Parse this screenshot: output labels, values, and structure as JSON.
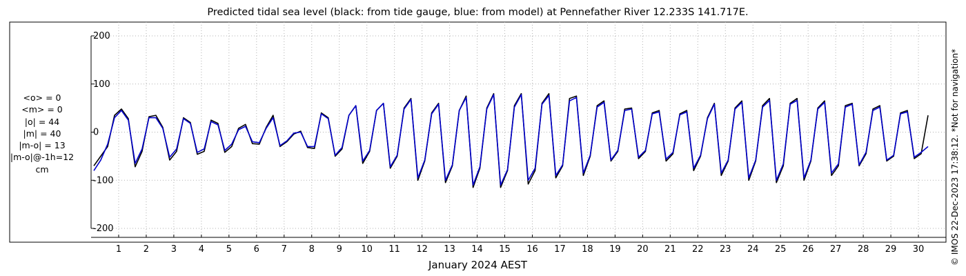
{
  "title": "Predicted tidal sea level (black: from tide gauge, blue: from model) at Pennefather River 12.233S 141.717E.",
  "xlabel": "January 2024 AEST",
  "stats": [
    "<o> = 0",
    "<m> = 0",
    "|o| = 44",
    "|m| = 40",
    "|m-o| = 13",
    "|m-o|@-1h=12",
    "cm"
  ],
  "credit": "© IMOS 22-Dec-2023 17:38:12. *Not for navigation*",
  "colors": {
    "observed": "#000000",
    "model": "#0000cc",
    "grid": "#b0b0b0"
  },
  "chart_data": {
    "type": "line",
    "title": "Predicted tidal sea level (black: from tide gauge, blue: from model) at Pennefather River 12.233S 141.717E.",
    "xlabel": "January 2024 AEST",
    "ylabel": "",
    "xlim": [
      0,
      31
    ],
    "ylim": [
      -200,
      200
    ],
    "x_ticks": [
      1,
      2,
      3,
      4,
      5,
      6,
      7,
      8,
      9,
      10,
      11,
      12,
      13,
      14,
      15,
      16,
      17,
      18,
      19,
      20,
      21,
      22,
      23,
      24,
      25,
      26,
      27,
      28,
      29,
      30
    ],
    "y_ticks": [
      -200,
      -100,
      0,
      100,
      200
    ],
    "grid": true,
    "x_step_days": 0.25,
    "x_start_day": 0.1,
    "series": [
      {
        "name": "black: from tide gauge",
        "color": "#000000",
        "values": [
          -70,
          -50,
          -30,
          35,
          48,
          28,
          -72,
          -40,
          32,
          35,
          10,
          -58,
          -40,
          30,
          20,
          -46,
          -40,
          25,
          18,
          -42,
          -30,
          8,
          16,
          -24,
          -25,
          10,
          35,
          -30,
          -20,
          -4,
          2,
          -32,
          -34,
          40,
          30,
          -50,
          -35,
          35,
          55,
          -65,
          -40,
          45,
          60,
          -75,
          -50,
          50,
          70,
          -100,
          -60,
          40,
          60,
          -105,
          -70,
          45,
          75,
          -115,
          -75,
          50,
          80,
          -115,
          -80,
          55,
          80,
          -108,
          -80,
          60,
          80,
          -95,
          -70,
          70,
          75,
          -90,
          -50,
          55,
          65,
          -60,
          -40,
          48,
          50,
          -55,
          -40,
          40,
          45,
          -60,
          -45,
          38,
          45,
          -80,
          -50,
          30,
          60,
          -90,
          -60,
          50,
          65,
          -100,
          -60,
          55,
          70,
          -105,
          -70,
          60,
          70,
          -100,
          -60,
          50,
          65,
          -90,
          -70,
          55,
          60,
          -70,
          -45,
          48,
          55,
          -60,
          -50,
          40,
          45,
          -55,
          -45,
          35
        ]
      },
      {
        "name": "blue: from model",
        "color": "#0000cc",
        "values": [
          -80,
          -58,
          -25,
          30,
          45,
          25,
          -65,
          -35,
          30,
          30,
          8,
          -52,
          -35,
          28,
          18,
          -42,
          -35,
          22,
          15,
          -38,
          -25,
          5,
          12,
          -20,
          -22,
          8,
          30,
          -28,
          -18,
          -2,
          0,
          -30,
          -30,
          38,
          28,
          -48,
          -32,
          35,
          55,
          -60,
          -38,
          45,
          60,
          -72,
          -48,
          48,
          68,
          -95,
          -58,
          38,
          58,
          -100,
          -68,
          45,
          72,
          -110,
          -72,
          48,
          78,
          -110,
          -78,
          52,
          78,
          -100,
          -75,
          58,
          76,
          -90,
          -68,
          65,
          72,
          -85,
          -48,
          52,
          62,
          -58,
          -38,
          45,
          48,
          -52,
          -38,
          38,
          42,
          -56,
          -42,
          36,
          42,
          -75,
          -48,
          28,
          58,
          -85,
          -58,
          48,
          62,
          -95,
          -58,
          52,
          66,
          -100,
          -66,
          58,
          66,
          -95,
          -58,
          48,
          62,
          -85,
          -66,
          52,
          58,
          -68,
          -42,
          45,
          52,
          -58,
          -48,
          38,
          42,
          -52,
          -42,
          -30
        ]
      }
    ]
  }
}
